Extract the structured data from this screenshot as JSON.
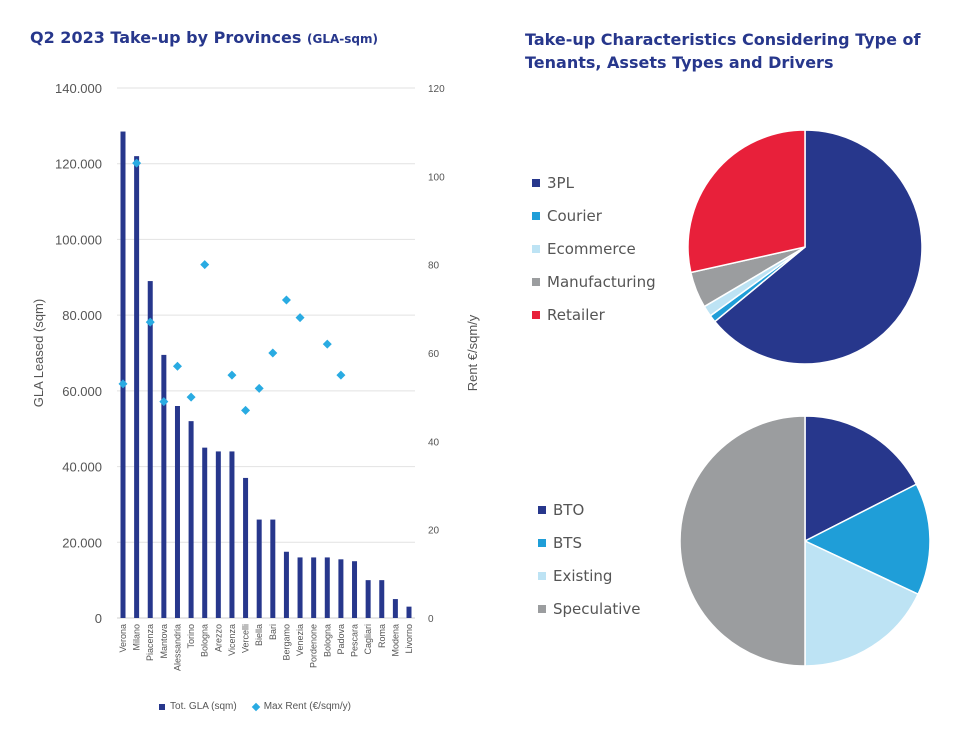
{
  "titles": {
    "left_main": "Q2 2023 Take-up by Provinces",
    "left_unit": "(GLA-sqm)",
    "right": "Take-up Characteristics Considering Type of Tenants, Assets Types and Drivers"
  },
  "colors": {
    "bar": "#27378c",
    "marker": "#29abe2",
    "grid": "#e2e2e2",
    "axis_text": "#555555"
  },
  "chart_data": [
    {
      "type": "bar",
      "title": "Q2 2023 Take-up by Provinces (GLA-sqm)",
      "categories": [
        "Verona",
        "Milano",
        "Piacenza",
        "Mantova",
        "Alessandria",
        "Torino",
        "Bologna",
        "Arezzo",
        "Vicenza",
        "Vercelli",
        "Biella",
        "Bari",
        "Bergamo",
        "Venezia",
        "Pordenone",
        "Bologna",
        "Padova",
        "Pescara",
        "Cagliari",
        "Roma",
        "Modena",
        "Livorno"
      ],
      "series": [
        {
          "name": "Tot. GLA (sqm)",
          "type": "bar",
          "axis": "left",
          "values": [
            128500,
            122000,
            89000,
            69500,
            56000,
            52000,
            45000,
            44000,
            44000,
            37000,
            26000,
            26000,
            17500,
            16000,
            16000,
            16000,
            15500,
            15000,
            10000,
            10000,
            5000,
            3000
          ]
        },
        {
          "name": "Max Rent (€/sqm/y)",
          "type": "scatter",
          "axis": "right",
          "values": [
            53,
            103,
            67,
            49,
            57,
            50,
            80,
            null,
            55,
            47,
            52,
            60,
            72,
            68,
            null,
            62,
            55,
            null,
            null,
            null,
            null,
            null
          ]
        }
      ],
      "ylabel": "GLA Leased (sqm)",
      "ylabel_right": "Rent €/sqm/y",
      "ylim": [
        0,
        140000
      ],
      "ylim_right": [
        0,
        120
      ],
      "yticks": [
        "0",
        "20.000",
        "40.000",
        "60.000",
        "80.000",
        "100.000",
        "120.000",
        "140.000"
      ],
      "yticks_values": [
        0,
        20000,
        40000,
        60000,
        80000,
        100000,
        120000,
        140000
      ],
      "yticks_right": [
        "0",
        "20",
        "40",
        "60",
        "80",
        "100",
        "120"
      ],
      "yticks_right_values": [
        0,
        20,
        40,
        60,
        80,
        100,
        120
      ],
      "grid": true,
      "legend": "bottom"
    },
    {
      "type": "pie",
      "labels": [
        "3PL",
        "Courier",
        "Ecommerce",
        "Manufacturing",
        "Retailer"
      ],
      "values": [
        64,
        1,
        1.5,
        5,
        28.5
      ],
      "colors": [
        "#27378c",
        "#1f9ed8",
        "#bde3f4",
        "#9b9d9f",
        "#e8203a"
      ],
      "legend": "left"
    },
    {
      "type": "pie",
      "labels": [
        "BTO",
        "BTS",
        "Existing",
        "Speculative"
      ],
      "values": [
        17.5,
        14.5,
        18,
        50
      ],
      "colors": [
        "#27378c",
        "#1f9ed8",
        "#bde3f4",
        "#9b9d9f"
      ],
      "legend": "left"
    }
  ]
}
